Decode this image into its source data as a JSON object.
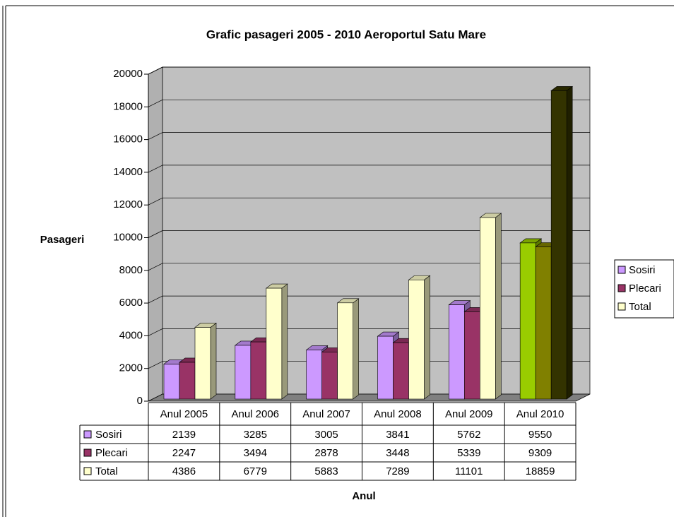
{
  "chart_data": {
    "type": "bar3d",
    "title": "Grafic pasageri 2005 - 2010 Aeroportul Satu Mare",
    "x_label": "Anul",
    "y_label": "Pasageri",
    "categories": [
      "Anul 2005",
      "Anul 2006",
      "Anul 2007",
      "Anul 2008",
      "Anul 2009",
      "Anul 2010"
    ],
    "series": [
      {
        "name": "Sosiri",
        "color": "#cc99ff",
        "colors": [
          "#cc99ff",
          "#cc99ff",
          "#cc99ff",
          "#cc99ff",
          "#cc99ff",
          "#99cc00"
        ],
        "values": [
          2139,
          3285,
          3005,
          3841,
          5762,
          9550
        ]
      },
      {
        "name": "Plecari",
        "color": "#993366",
        "colors": [
          "#993366",
          "#993366",
          "#993366",
          "#993366",
          "#993366",
          "#808000"
        ],
        "values": [
          2247,
          3494,
          2878,
          3448,
          5339,
          9309
        ]
      },
      {
        "name": "Total",
        "color": "#ffffcc",
        "colors": [
          "#ffffcc",
          "#ffffcc",
          "#ffffcc",
          "#ffffcc",
          "#ffffcc",
          "#333300"
        ],
        "values": [
          4386,
          6779,
          5883,
          7289,
          11101,
          18859
        ]
      }
    ],
    "ylim": [
      0,
      20000
    ],
    "yticks": [
      0,
      2000,
      4000,
      6000,
      8000,
      10000,
      12000,
      14000,
      16000,
      18000,
      20000
    ],
    "grid": true,
    "legend": "right"
  }
}
